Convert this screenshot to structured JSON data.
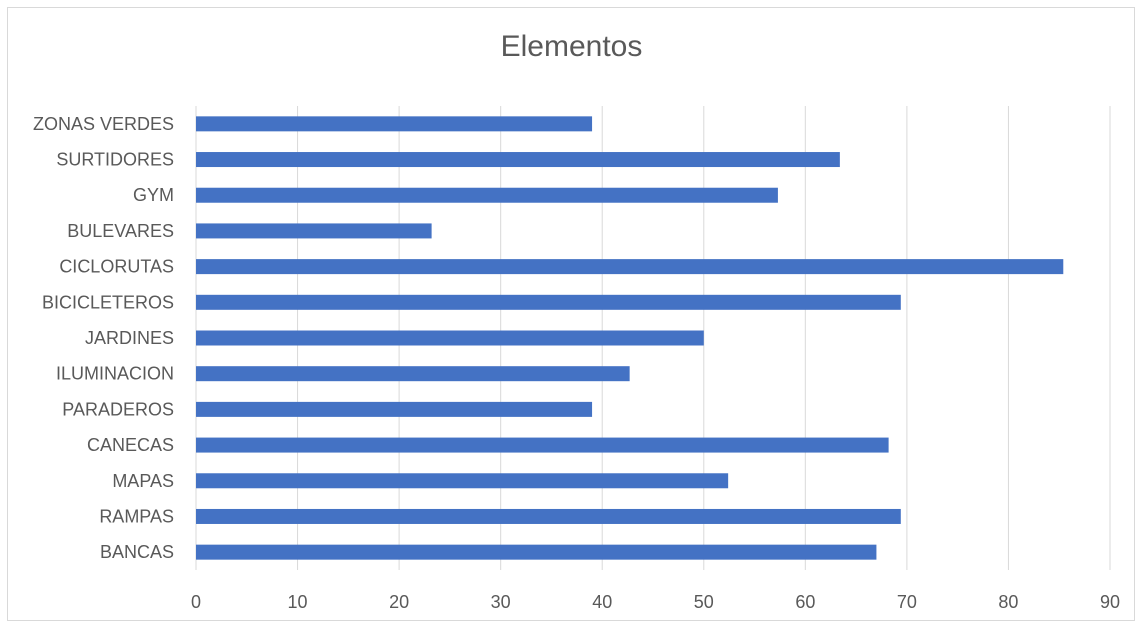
{
  "chart_data": {
    "type": "bar",
    "orientation": "horizontal",
    "title": "Elementos",
    "xlabel": "",
    "ylabel": "",
    "categories": [
      "BANCAS",
      "RAMPAS",
      "MAPAS",
      "CANECAS",
      "PARADEROS",
      "ILUMINACION",
      "JARDINES",
      "BICICLETEROS",
      "CICLORUTAS",
      "BULEVARES",
      "GYM",
      "SURTIDORES",
      "ZONAS VERDES"
    ],
    "values": [
      67,
      69.4,
      52.4,
      68.2,
      39,
      42.7,
      50,
      69.4,
      85.4,
      23.2,
      57.3,
      63.4,
      39
    ],
    "xlim": [
      0,
      90
    ],
    "xticks": [
      "0",
      "10",
      "20",
      "30",
      "40",
      "50",
      "60",
      "70",
      "80",
      "90"
    ],
    "grid": "vertical",
    "legend": "none",
    "bar_color": "#4472c4",
    "grid_color": "#d9d9d9"
  }
}
